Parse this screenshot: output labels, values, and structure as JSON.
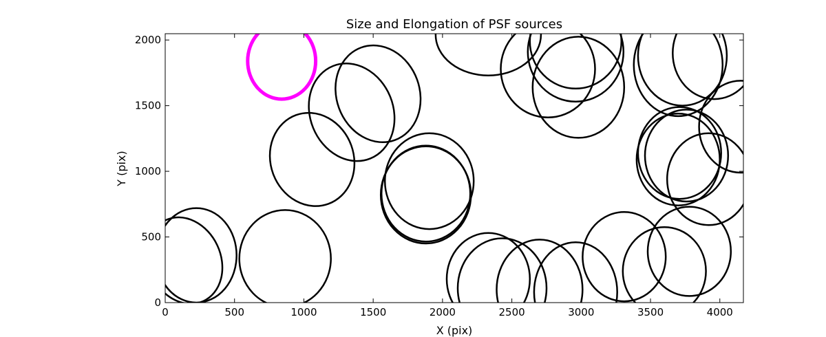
{
  "chart_data": {
    "type": "scatter",
    "marker": "ellipse",
    "title": "Size and Elongation of PSF sources",
    "xlabel": "X (pix)",
    "ylabel": "Y (pix)",
    "xlim": [
      0,
      4170
    ],
    "ylim": [
      0,
      2048
    ],
    "xticks": [
      0,
      500,
      1000,
      1500,
      2000,
      2500,
      3000,
      3500,
      4000
    ],
    "yticks": [
      0,
      500,
      1000,
      1500,
      2000
    ],
    "grid": false,
    "colors": {
      "ellipse": "#000000",
      "highlight": "#ff00ff",
      "axes": "#000000",
      "background": "#ffffff"
    },
    "ellipses": [
      {
        "x": 140,
        "y": 320,
        "w": 520,
        "h": 680,
        "angle": -25
      },
      {
        "x": 225,
        "y": 360,
        "w": 580,
        "h": 720,
        "angle": 0
      },
      {
        "x": 865,
        "y": 335,
        "w": 660,
        "h": 740,
        "angle": 0
      },
      {
        "x": 1060,
        "y": 1090,
        "w": 600,
        "h": 720,
        "angle": -20
      },
      {
        "x": 1345,
        "y": 1450,
        "w": 600,
        "h": 760,
        "angle": -22
      },
      {
        "x": 1535,
        "y": 1590,
        "w": 600,
        "h": 750,
        "angle": -20
      },
      {
        "x": 1905,
        "y": 925,
        "w": 640,
        "h": 730,
        "angle": 0
      },
      {
        "x": 1880,
        "y": 830,
        "w": 640,
        "h": 730,
        "angle": 0
      },
      {
        "x": 1880,
        "y": 820,
        "w": 650,
        "h": 740,
        "angle": 0
      },
      {
        "x": 2330,
        "y": 2040,
        "w": 760,
        "h": 620,
        "angle": 0
      },
      {
        "x": 2330,
        "y": 180,
        "w": 600,
        "h": 700,
        "angle": 0
      },
      {
        "x": 2430,
        "y": 110,
        "w": 640,
        "h": 760,
        "angle": 0
      },
      {
        "x": 2700,
        "y": 100,
        "w": 620,
        "h": 760,
        "angle": 0
      },
      {
        "x": 2760,
        "y": 1780,
        "w": 680,
        "h": 740,
        "angle": 0
      },
      {
        "x": 2960,
        "y": 80,
        "w": 600,
        "h": 760,
        "angle": 0
      },
      {
        "x": 2960,
        "y": 1990,
        "w": 660,
        "h": 720,
        "angle": 0
      },
      {
        "x": 2960,
        "y": 1910,
        "w": 690,
        "h": 760,
        "angle": 0
      },
      {
        "x": 2980,
        "y": 1640,
        "w": 660,
        "h": 770,
        "angle": 0
      },
      {
        "x": 3310,
        "y": 350,
        "w": 600,
        "h": 680,
        "angle": 0
      },
      {
        "x": 3600,
        "y": 240,
        "w": 600,
        "h": 670,
        "angle": 0
      },
      {
        "x": 3700,
        "y": 1810,
        "w": 640,
        "h": 780,
        "angle": 0
      },
      {
        "x": 3730,
        "y": 1880,
        "w": 640,
        "h": 760,
        "angle": 0
      },
      {
        "x": 3700,
        "y": 1090,
        "w": 600,
        "h": 700,
        "angle": 0
      },
      {
        "x": 3710,
        "y": 1140,
        "w": 600,
        "h": 700,
        "angle": 0
      },
      {
        "x": 3760,
        "y": 1120,
        "w": 600,
        "h": 700,
        "angle": 0
      },
      {
        "x": 3780,
        "y": 390,
        "w": 600,
        "h": 680,
        "angle": 0
      },
      {
        "x": 3920,
        "y": 940,
        "w": 600,
        "h": 700,
        "angle": 0
      },
      {
        "x": 3960,
        "y": 1900,
        "w": 600,
        "h": 700,
        "angle": 0
      },
      {
        "x": 4150,
        "y": 1340,
        "w": 600,
        "h": 700,
        "angle": 0
      }
    ],
    "highlight": {
      "x": 840,
      "y": 1840,
      "w": 490,
      "h": 580,
      "angle": 0
    }
  }
}
